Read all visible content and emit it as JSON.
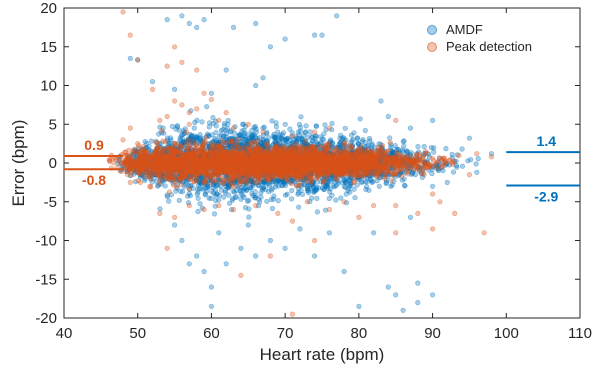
{
  "chart_data": {
    "type": "scatter",
    "title": "",
    "xlabel": "Heart rate (bpm)",
    "ylabel": "Error (bpm)",
    "xlim": [
      40,
      110
    ],
    "ylim": [
      -20,
      20
    ],
    "xticks": [
      "40",
      "50",
      "60",
      "70",
      "80",
      "90",
      "100",
      "110"
    ],
    "yticks": [
      "20",
      "15",
      "10",
      "5",
      "0",
      "-5",
      "-10",
      "-15",
      "-20"
    ],
    "grid": false,
    "legend_position": "top-right",
    "series": [
      {
        "name": "AMDF",
        "color": "#0072BD",
        "density": [
          {
            "x": 48,
            "spread": 0.7,
            "count": 20
          },
          {
            "x": 50,
            "spread": 1.0,
            "count": 70
          },
          {
            "x": 52,
            "spread": 1.3,
            "count": 110
          },
          {
            "x": 54,
            "spread": 1.7,
            "count": 140
          },
          {
            "x": 56,
            "spread": 2.0,
            "count": 170
          },
          {
            "x": 58,
            "spread": 2.2,
            "count": 180
          },
          {
            "x": 60,
            "spread": 2.3,
            "count": 190
          },
          {
            "x": 62,
            "spread": 2.3,
            "count": 200
          },
          {
            "x": 64,
            "spread": 2.2,
            "count": 210
          },
          {
            "x": 66,
            "spread": 2.1,
            "count": 210
          },
          {
            "x": 68,
            "spread": 2.0,
            "count": 210
          },
          {
            "x": 70,
            "spread": 2.0,
            "count": 210
          },
          {
            "x": 72,
            "spread": 1.9,
            "count": 210
          },
          {
            "x": 74,
            "spread": 1.9,
            "count": 200
          },
          {
            "x": 76,
            "spread": 1.8,
            "count": 190
          },
          {
            "x": 78,
            "spread": 1.7,
            "count": 170
          },
          {
            "x": 80,
            "spread": 1.6,
            "count": 150
          },
          {
            "x": 82,
            "spread": 1.4,
            "count": 120
          },
          {
            "x": 84,
            "spread": 1.3,
            "count": 90
          },
          {
            "x": 86,
            "spread": 1.2,
            "count": 60
          },
          {
            "x": 88,
            "spread": 1.0,
            "count": 40
          },
          {
            "x": 90,
            "spread": 0.9,
            "count": 25
          },
          {
            "x": 92,
            "spread": 0.8,
            "count": 12
          },
          {
            "x": 94,
            "spread": 0.7,
            "count": 6
          },
          {
            "x": 96,
            "spread": 0.6,
            "count": 3
          }
        ],
        "outliers": [
          [
            49,
            13.5
          ],
          [
            54,
            18.5
          ],
          [
            56,
            19
          ],
          [
            57,
            18
          ],
          [
            58,
            17.5
          ],
          [
            59,
            18.5
          ],
          [
            63,
            17.5
          ],
          [
            66,
            18
          ],
          [
            68,
            15
          ],
          [
            70,
            16
          ],
          [
            74,
            16.5
          ],
          [
            75,
            16.5
          ],
          [
            77,
            19
          ],
          [
            50,
            13.3
          ],
          [
            52,
            10.5
          ],
          [
            55,
            9.5
          ],
          [
            60,
            9
          ],
          [
            66,
            10
          ],
          [
            62,
            12
          ],
          [
            67,
            11
          ],
          [
            83,
            8
          ],
          [
            84,
            6
          ],
          [
            87,
            4.5
          ],
          [
            90,
            5.5
          ],
          [
            95,
            3.2
          ],
          [
            98,
            1.2
          ],
          [
            55,
            -8
          ],
          [
            56,
            -10
          ],
          [
            58,
            -12
          ],
          [
            59,
            -14
          ],
          [
            60,
            -16
          ],
          [
            62,
            -13
          ],
          [
            64,
            -11
          ],
          [
            66,
            -12
          ],
          [
            68,
            -10
          ],
          [
            70,
            -11
          ],
          [
            74,
            -12
          ],
          [
            78,
            -14
          ],
          [
            80,
            -18.5
          ],
          [
            84,
            -16
          ],
          [
            85,
            -17
          ],
          [
            86,
            -19
          ],
          [
            88,
            -18
          ],
          [
            88,
            -15.5
          ],
          [
            90,
            -17
          ],
          [
            60,
            -18.5
          ],
          [
            57,
            -13
          ],
          [
            61,
            -9
          ],
          [
            65,
            -8
          ],
          [
            72,
            -8.5
          ],
          [
            76,
            -9
          ],
          [
            82,
            -9
          ],
          [
            87,
            -7
          ],
          [
            90,
            -3
          ],
          [
            92,
            -2.5
          ],
          [
            96,
            -1.2
          ],
          [
            94,
            1.8
          ]
        ]
      },
      {
        "name": "Peak detection",
        "color": "#D95319",
        "density": [
          {
            "x": 47,
            "spread": 0.6,
            "count": 15
          },
          {
            "x": 49,
            "spread": 0.8,
            "count": 70
          },
          {
            "x": 51,
            "spread": 1.0,
            "count": 120
          },
          {
            "x": 53,
            "spread": 1.1,
            "count": 150
          },
          {
            "x": 55,
            "spread": 1.2,
            "count": 170
          },
          {
            "x": 57,
            "spread": 1.2,
            "count": 180
          },
          {
            "x": 59,
            "spread": 1.1,
            "count": 190
          },
          {
            "x": 61,
            "spread": 1.1,
            "count": 200
          },
          {
            "x": 63,
            "spread": 1.1,
            "count": 210
          },
          {
            "x": 65,
            "spread": 1.0,
            "count": 220
          },
          {
            "x": 67,
            "spread": 1.0,
            "count": 220
          },
          {
            "x": 69,
            "spread": 1.0,
            "count": 220
          },
          {
            "x": 71,
            "spread": 1.0,
            "count": 220
          },
          {
            "x": 73,
            "spread": 1.0,
            "count": 210
          },
          {
            "x": 75,
            "spread": 1.0,
            "count": 200
          },
          {
            "x": 77,
            "spread": 0.9,
            "count": 180
          },
          {
            "x": 79,
            "spread": 0.9,
            "count": 160
          },
          {
            "x": 81,
            "spread": 0.9,
            "count": 130
          },
          {
            "x": 83,
            "spread": 0.8,
            "count": 100
          },
          {
            "x": 85,
            "spread": 0.8,
            "count": 70
          },
          {
            "x": 87,
            "spread": 0.7,
            "count": 45
          },
          {
            "x": 89,
            "spread": 0.7,
            "count": 30
          },
          {
            "x": 91,
            "spread": 0.6,
            "count": 15
          },
          {
            "x": 93,
            "spread": 0.5,
            "count": 6
          }
        ],
        "outliers": [
          [
            48,
            19.5
          ],
          [
            49,
            16.5
          ],
          [
            55,
            15
          ],
          [
            56,
            13
          ],
          [
            58,
            12
          ],
          [
            54,
            12.5
          ],
          [
            50,
            13.3
          ],
          [
            52,
            9.5
          ],
          [
            55,
            8
          ],
          [
            56,
            7.5
          ],
          [
            57,
            6.5
          ],
          [
            58,
            7
          ],
          [
            59,
            9
          ],
          [
            60,
            8.2
          ],
          [
            54,
            6
          ],
          [
            57,
            5
          ],
          [
            53,
            5.5
          ],
          [
            61,
            5.5
          ],
          [
            62,
            6.5
          ],
          [
            63,
            4.5
          ],
          [
            65,
            5
          ],
          [
            67,
            4
          ],
          [
            49,
            4.5
          ],
          [
            48,
            3
          ],
          [
            71,
            3.5
          ],
          [
            74,
            4
          ],
          [
            76,
            4.5
          ],
          [
            50,
            2.5
          ],
          [
            85,
            5.5
          ],
          [
            53,
            -6.5
          ],
          [
            55,
            -7
          ],
          [
            57,
            -5.5
          ],
          [
            59,
            -6
          ],
          [
            61,
            -5.5
          ],
          [
            63,
            -6
          ],
          [
            66,
            -5.5
          ],
          [
            69,
            -6.5
          ],
          [
            71,
            -7.5
          ],
          [
            73,
            -5
          ],
          [
            76,
            -6
          ],
          [
            78,
            -5
          ],
          [
            80,
            -7
          ],
          [
            82,
            -5.5
          ],
          [
            85,
            -5.5
          ],
          [
            88,
            -6.5
          ],
          [
            91,
            -5
          ],
          [
            93,
            -6.5
          ],
          [
            97,
            -9
          ],
          [
            54,
            -11
          ],
          [
            64,
            -14.5
          ],
          [
            68,
            -12
          ],
          [
            74,
            -10
          ],
          [
            85,
            -9
          ],
          [
            90,
            -8.5
          ],
          [
            71,
            -19.5
          ],
          [
            90,
            -4
          ],
          [
            49,
            -2.5
          ],
          [
            95,
            -1.5
          ],
          [
            98,
            0.8
          ],
          [
            96,
            1.2
          ]
        ]
      }
    ],
    "annotations": [
      {
        "series": "Peak detection",
        "side": "left",
        "upper": 0.9,
        "lower": -0.8,
        "upper_label": "0.9",
        "lower_label": "-0.8"
      },
      {
        "series": "AMDF",
        "side": "right",
        "upper": 1.4,
        "lower": -2.9,
        "upper_label": "1.4",
        "lower_label": "-2.9"
      }
    ]
  }
}
